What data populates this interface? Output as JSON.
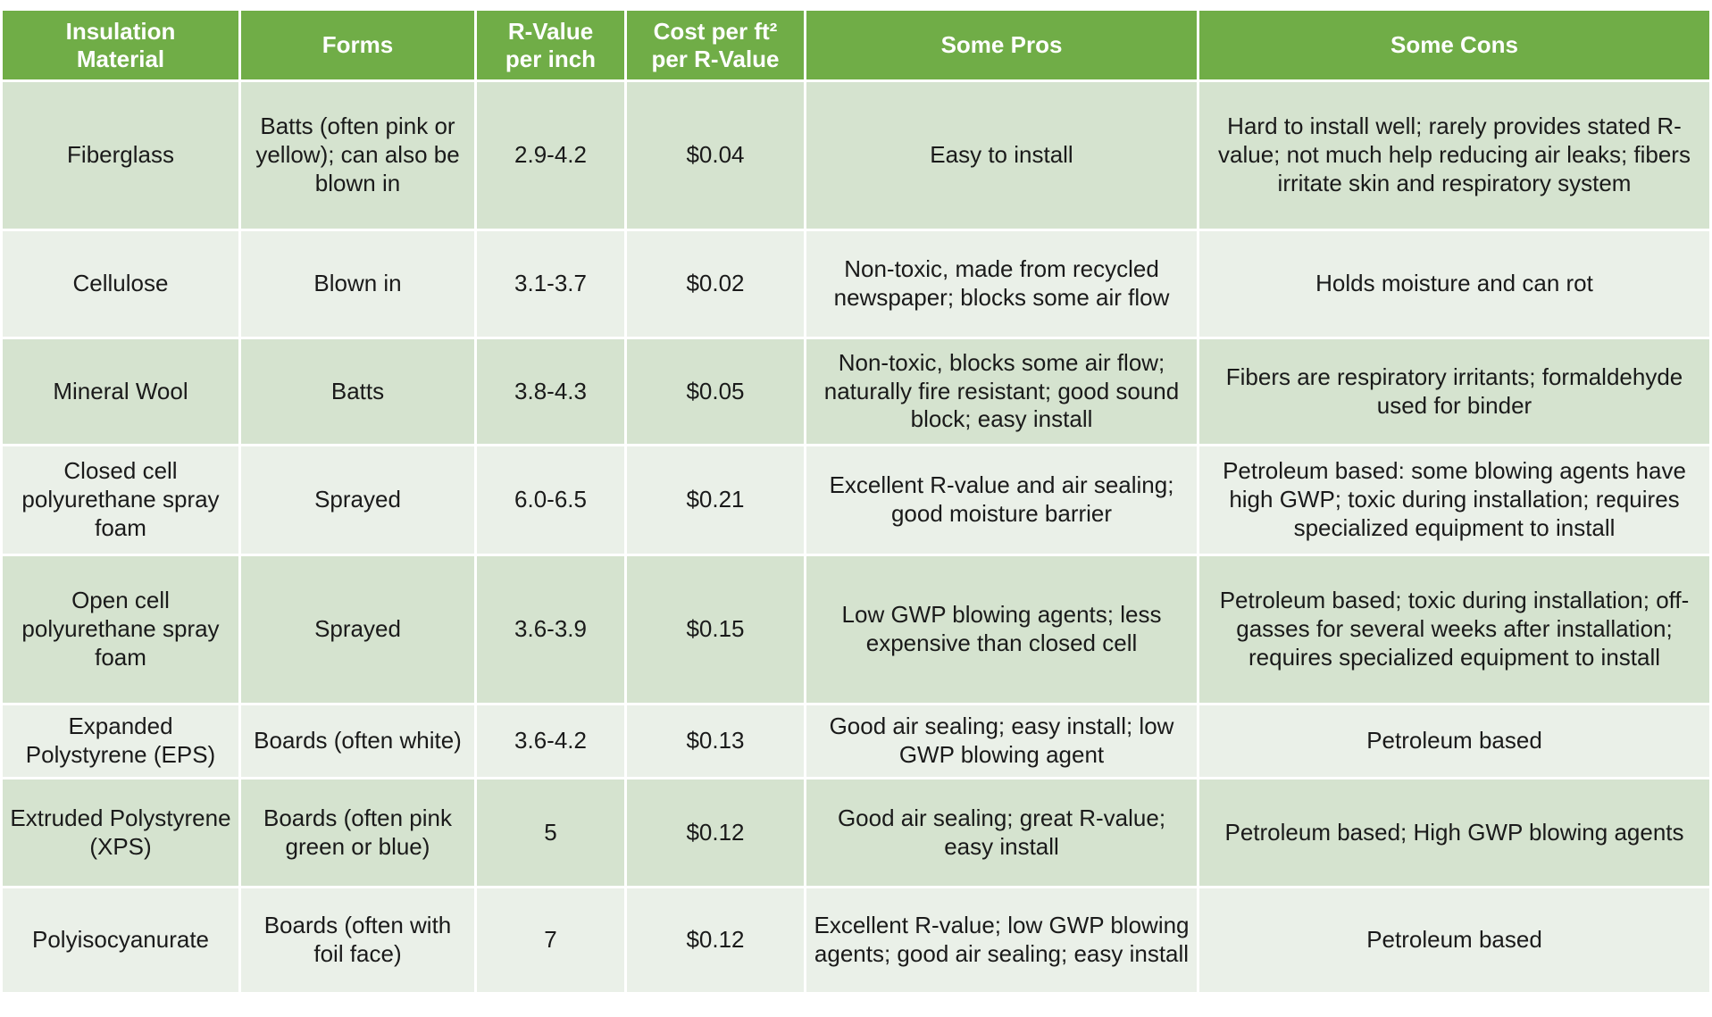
{
  "table": {
    "header": [
      [
        "Insulation",
        "Material"
      ],
      [
        "Forms"
      ],
      [
        "R-Value",
        "per inch"
      ],
      [
        "Cost per ft²",
        "per R-Value"
      ],
      [
        "Some Pros"
      ],
      [
        "Some Cons"
      ]
    ],
    "rows": [
      [
        "Fiberglass",
        "Batts (often pink or yellow); can also be blown in",
        "2.9-4.2",
        "$0.04",
        "Easy to install",
        "Hard to install well; rarely provides stated R-value; not much help reducing air leaks; fibers irritate skin and respiratory system"
      ],
      [
        "Cellulose",
        "Blown in",
        "3.1-3.7",
        "$0.02",
        "Non-toxic, made from recycled newspaper; blocks some air flow",
        "Holds moisture and can rot"
      ],
      [
        "Mineral Wool",
        "Batts",
        "3.8-4.3",
        "$0.05",
        "Non-toxic, blocks some air flow; naturally fire resistant; good sound block; easy install",
        "Fibers are respiratory irritants; formaldehyde used for binder"
      ],
      [
        "Closed cell polyurethane spray foam",
        "Sprayed",
        "6.0-6.5",
        "$0.21",
        "Excellent R-value and air sealing; good moisture barrier",
        "Petroleum based: some blowing agents have high GWP; toxic during installation; requires specialized equipment to install"
      ],
      [
        "Open cell polyurethane spray foam",
        "Sprayed",
        "3.6-3.9",
        "$0.15",
        "Low GWP blowing agents; less expensive than closed cell",
        "Petroleum based; toxic during installation; off-gasses for several weeks after installation; requires specialized equipment to install"
      ],
      [
        "Expanded Polystyrene (EPS)",
        "Boards (often white)",
        "3.6-4.2",
        "$0.13",
        "Good air sealing; easy install; low GWP blowing agent",
        "Petroleum based"
      ],
      [
        "Extruded Polystyrene (XPS)",
        "Boards (often pink green or blue)",
        "5",
        "$0.12",
        "Good air sealing; great R-value; easy install",
        "Petroleum based; High GWP blowing agents"
      ],
      [
        "Polyisocyanurate",
        "Boards (often with foil face)",
        "7",
        "$0.12",
        "Excellent R-value; low GWP blowing agents; good air sealing; easy install",
        "Petroleum based"
      ]
    ]
  }
}
